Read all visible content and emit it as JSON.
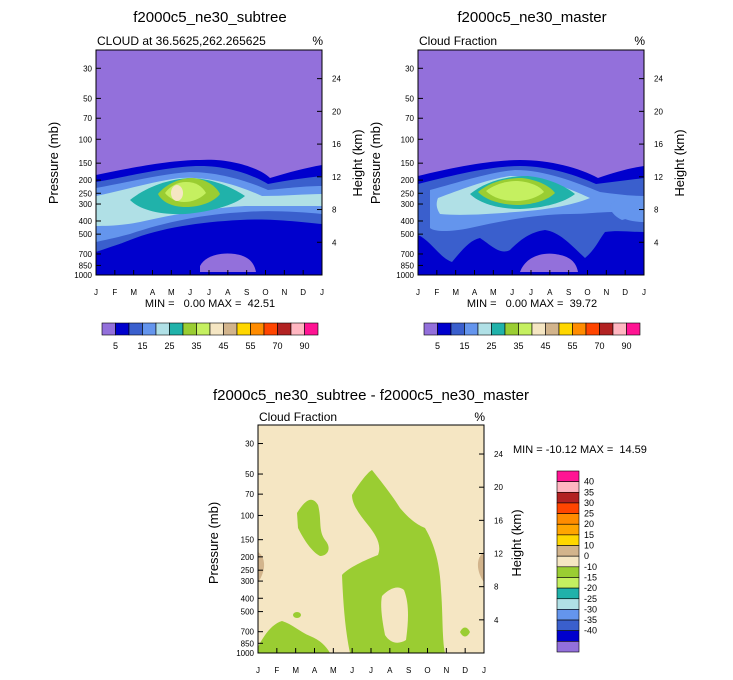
{
  "chart_data": [
    {
      "type": "heatmap",
      "title": "f2000c5_ne30_subtree",
      "subtitle_left": "CLOUD at 36.5625,262.265625",
      "units": "%",
      "ylabel": "Pressure (mb)",
      "ylabel_right": "Height (km)",
      "x_ticks": [
        "J",
        "F",
        "M",
        "A",
        "M",
        "J",
        "J",
        "A",
        "S",
        "O",
        "N",
        "D",
        "J"
      ],
      "y_ticks": [
        "30",
        "50",
        "70",
        "100",
        "150",
        "200",
        "250",
        "300",
        "400",
        "500",
        "700",
        "850",
        "1000"
      ],
      "height_ticks": [
        "24",
        "20",
        "16",
        "12",
        "8",
        "4"
      ],
      "min_max_label": "MIN =   0.00 MAX =  42.51",
      "min": 0.0,
      "max": 42.51
    },
    {
      "type": "heatmap",
      "title": "f2000c5_ne30_master",
      "subtitle_left": "Cloud Fraction",
      "units": "%",
      "ylabel": "Pressure (mb)",
      "ylabel_right": "Height (km)",
      "x_ticks": [
        "J",
        "F",
        "M",
        "A",
        "M",
        "J",
        "J",
        "A",
        "S",
        "O",
        "N",
        "D",
        "J"
      ],
      "y_ticks": [
        "30",
        "50",
        "70",
        "100",
        "150",
        "200",
        "250",
        "300",
        "400",
        "500",
        "700",
        "850",
        "1000"
      ],
      "height_ticks": [
        "24",
        "20",
        "16",
        "12",
        "8",
        "4"
      ],
      "min_max_label": "MIN =   0.00 MAX =  39.72",
      "min": 0.0,
      "max": 39.72
    },
    {
      "type": "heatmap",
      "title": "f2000c5_ne30_subtree - f2000c5_ne30_master",
      "subtitle_left": "Cloud Fraction",
      "units": "%",
      "ylabel": "Pressure (mb)",
      "ylabel_right": "Height (km)",
      "x_ticks": [
        "J",
        "F",
        "M",
        "A",
        "M",
        "J",
        "J",
        "A",
        "S",
        "O",
        "N",
        "D",
        "J"
      ],
      "y_ticks": [
        "30",
        "50",
        "70",
        "100",
        "150",
        "200",
        "250",
        "300",
        "400",
        "500",
        "700",
        "850",
        "1000"
      ],
      "height_ticks": [
        "24",
        "20",
        "16",
        "12",
        "8",
        "4"
      ],
      "min_max_label": "MIN = -10.12 MAX =  14.59",
      "min": -10.12,
      "max": 14.59
    }
  ],
  "colorbar_abs": {
    "colors": [
      "#9370db",
      "#0000cd",
      "#3a5fcd",
      "#6495ed",
      "#b0e0e6",
      "#20b2aa",
      "#9acd32",
      "#c5f060",
      "#f5e6c3",
      "#d2b48c",
      "#ffd700",
      "#ff8c00",
      "#ff4500",
      "#b22222",
      "#ffb6c1",
      "#ff1493"
    ],
    "labels": [
      "5",
      "15",
      "25",
      "35",
      "45",
      "55",
      "70",
      "90"
    ]
  },
  "colorbar_diff": {
    "colors": [
      "#ff1493",
      "#ffb6c1",
      "#b22222",
      "#ff4500",
      "#ff8c00",
      "#ffa500",
      "#ffd700",
      "#d2b48c",
      "#f5e6c3",
      "#9acd32",
      "#c5f060",
      "#20b2aa",
      "#b0e0e6",
      "#6495ed",
      "#3a5fcd",
      "#0000cd",
      "#9370db"
    ],
    "labels": [
      "40",
      "35",
      "30",
      "25",
      "20",
      "15",
      "10",
      "0",
      "-10",
      "-15",
      "-20",
      "-25",
      "-30",
      "-35",
      "-40"
    ]
  }
}
